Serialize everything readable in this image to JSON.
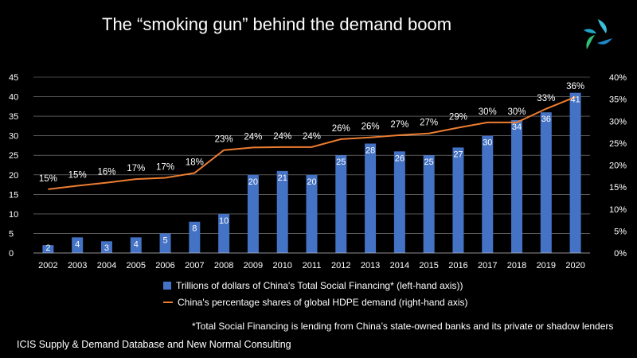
{
  "title": "The “smoking gun” behind the demand boom",
  "colors": {
    "bar": "#4472C4",
    "line": "#ED7D31",
    "grid": "#8C8C8C",
    "background": "#000000"
  },
  "logo": "ICIS-logo",
  "chart_data": {
    "type": "bar+line",
    "categories": [
      "2002",
      "2003",
      "2004",
      "2005",
      "2006",
      "2007",
      "2008",
      "2009",
      "2010",
      "2011",
      "2012",
      "2013",
      "2014",
      "2015",
      "2016",
      "2017",
      "2018",
      "2019",
      "2020"
    ],
    "series": [
      {
        "name": "Trillions of dollars of China's Total Social Financing* (left-hand axis))",
        "type": "bar",
        "axis": "left",
        "values": [
          2,
          4,
          3,
          4,
          5,
          8,
          10,
          20,
          21,
          20,
          25,
          28,
          26,
          25,
          27,
          30,
          34,
          36,
          41
        ],
        "labels": [
          "2",
          "4",
          "3",
          "4",
          "5",
          "8",
          "10",
          "20",
          "21",
          "20",
          "25",
          "28",
          "26",
          "25",
          "27",
          "30",
          "34",
          "36",
          "41"
        ]
      },
      {
        "name": "China's percentage shares of global HDPE demand (right-hand axis)",
        "type": "line",
        "axis": "right",
        "values": [
          14.5,
          15.3,
          16.0,
          16.8,
          17.1,
          18.2,
          23.4,
          24.0,
          24.1,
          24.1,
          25.9,
          26.3,
          26.8,
          27.2,
          28.5,
          29.7,
          29.7,
          32.8,
          35.5
        ],
        "labels": [
          "15%",
          "15%",
          "16%",
          "17%",
          "17%",
          "18%",
          "23%",
          "24%",
          "24%",
          "24%",
          "26%",
          "26%",
          "27%",
          "27%",
          "29%",
          "30%",
          "30%",
          "33%",
          "36%"
        ]
      }
    ],
    "left_axis": {
      "min": 0,
      "max": 45,
      "ticks": [
        "0",
        "5",
        "10",
        "15",
        "20",
        "25",
        "30",
        "35",
        "40",
        "45"
      ]
    },
    "right_axis": {
      "min": 0,
      "max": 40,
      "ticks": [
        "0%",
        "5%",
        "10%",
        "15%",
        "20%",
        "25%",
        "30%",
        "35%",
        "40%"
      ]
    },
    "grid": true,
    "legend_position": "bottom"
  },
  "legend": {
    "bar_label": "Trillions of dollars of China's Total Social Financing* (left-hand axis))",
    "line_label": "China's percentage shares of global HDPE demand (right-hand axis)"
  },
  "footnote": "*Total Social Financing is lending from China’s state-owned banks and its private or  shadow lenders",
  "source": "ICIS Supply & Demand Database and New Normal Consulting"
}
